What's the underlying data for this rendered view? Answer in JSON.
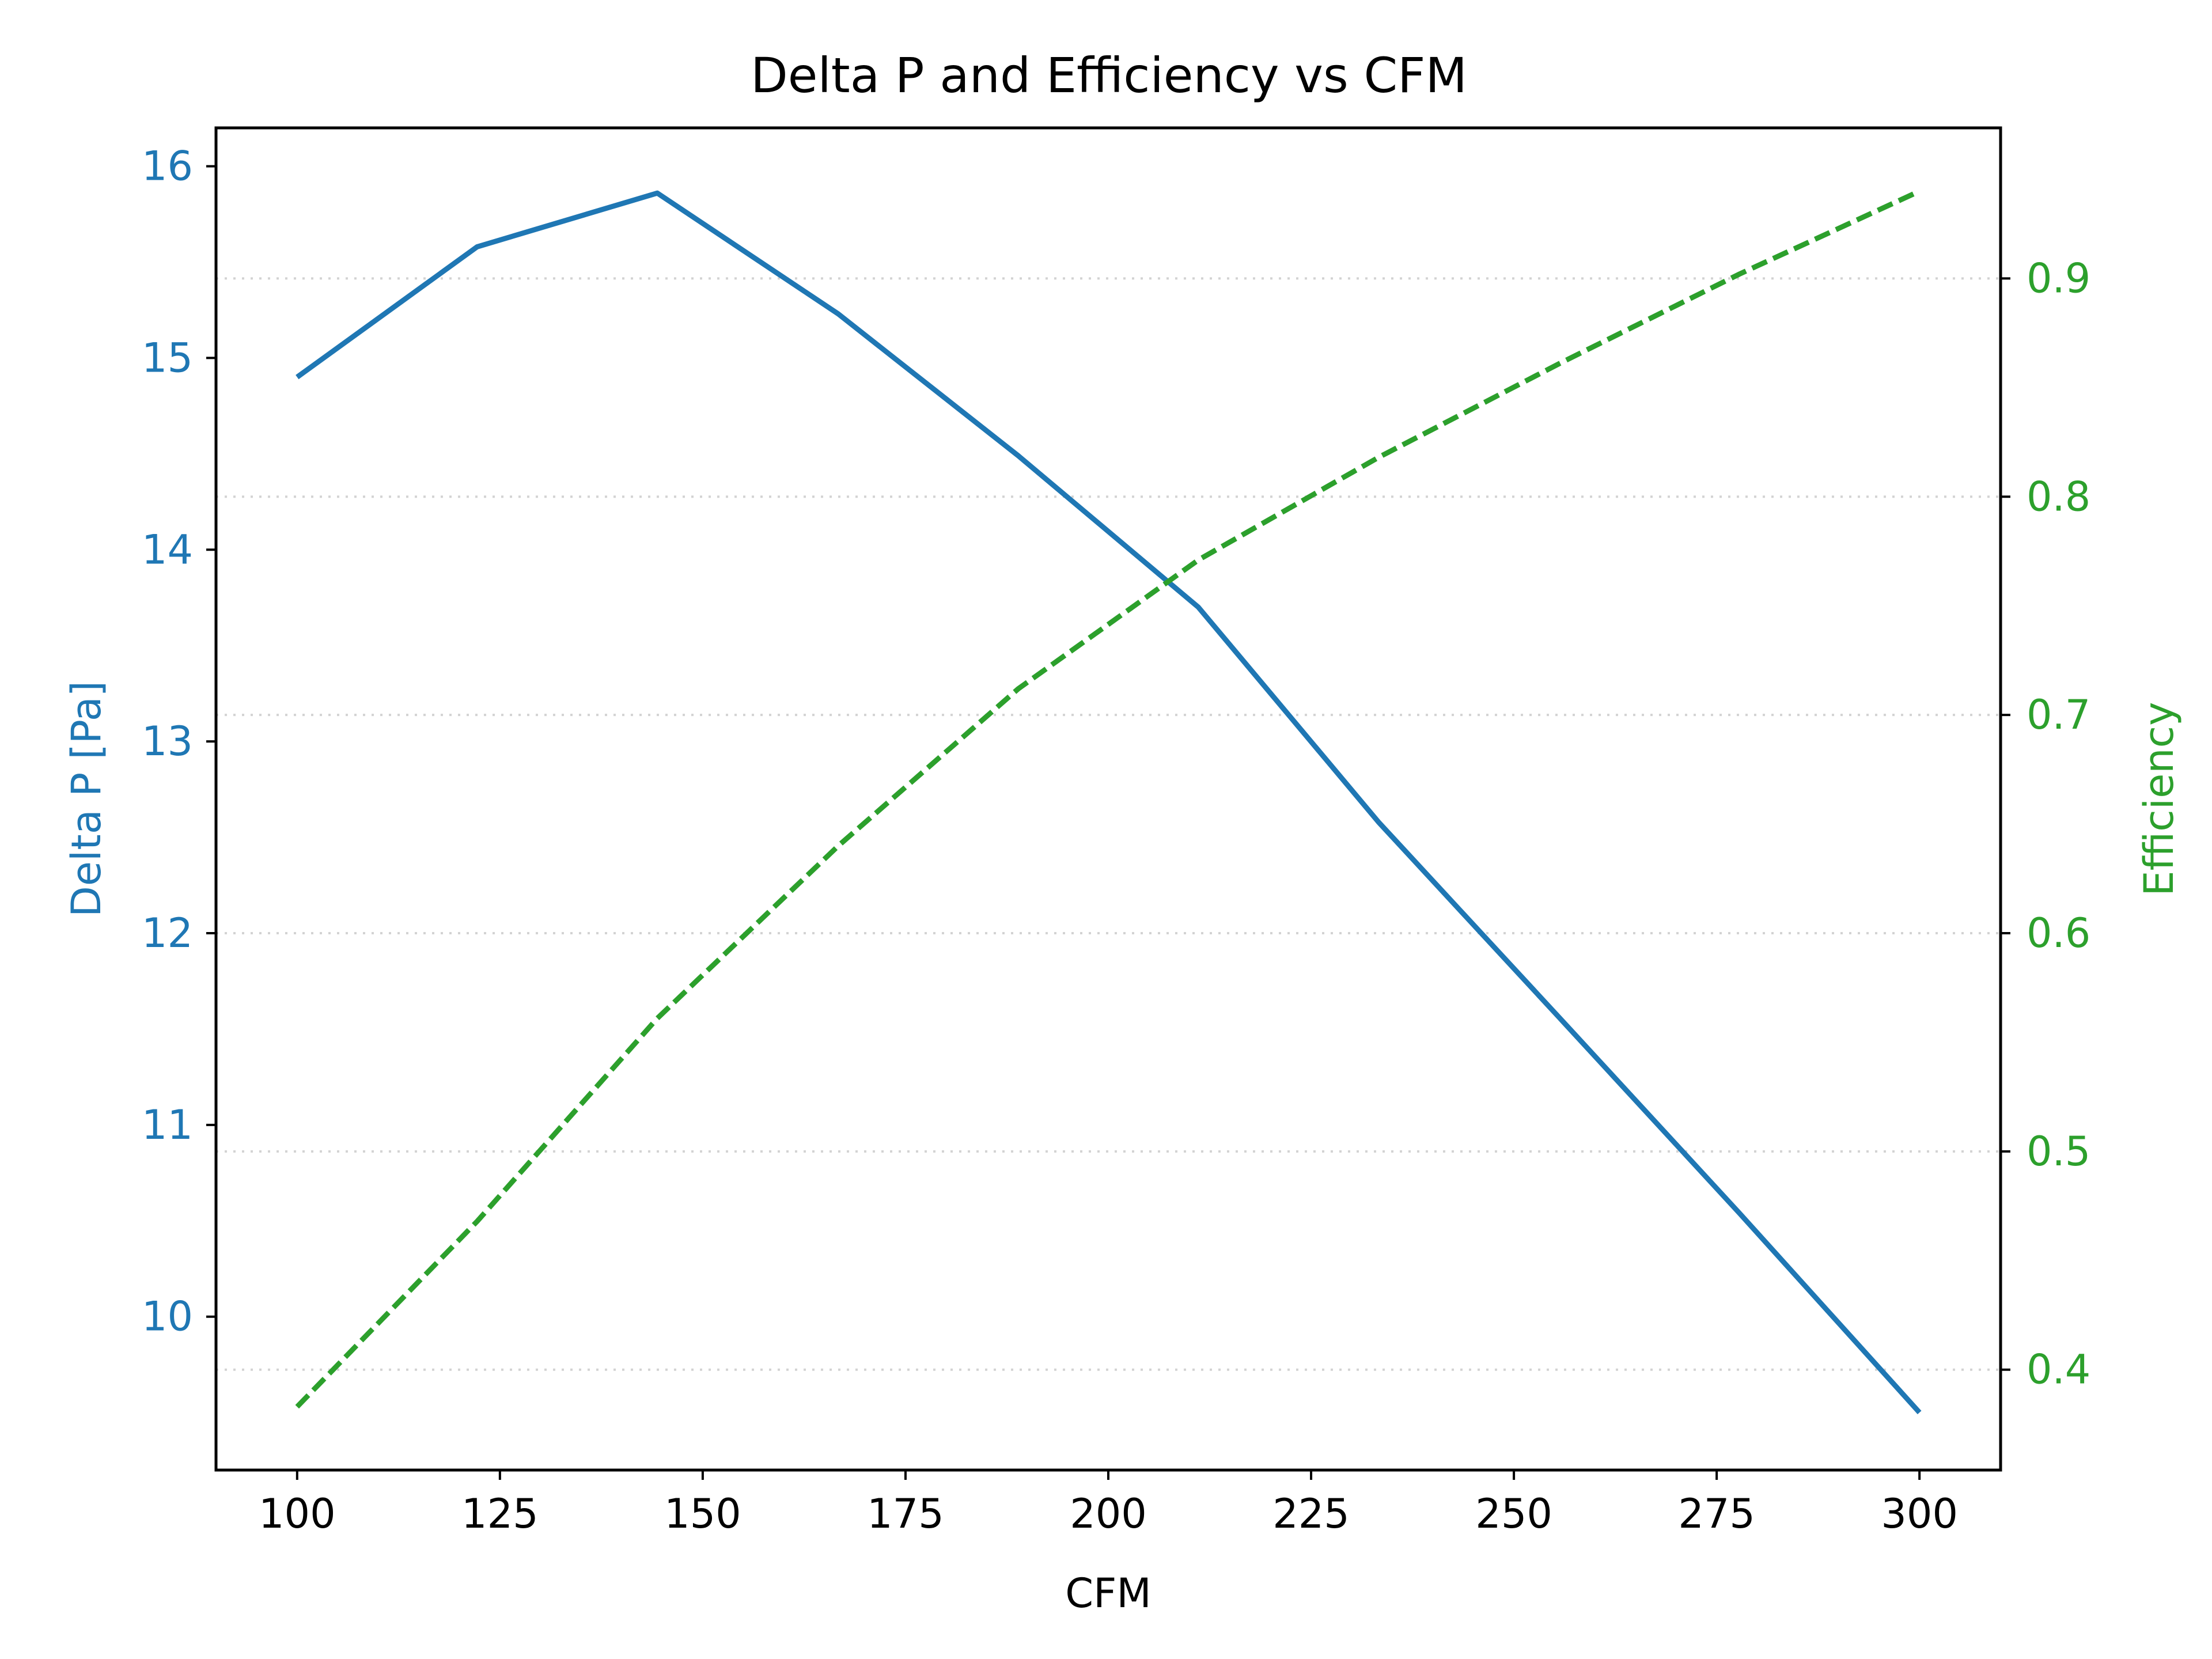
{
  "chart_data": {
    "type": "line",
    "title": "Delta P and Efficiency vs CFM",
    "xlabel": "CFM",
    "ylabel": "Delta P [Pa]",
    "y2label": "Efficiency",
    "xlim": [
      90,
      310
    ],
    "ylim": [
      9.2,
      16.2
    ],
    "y2lim": [
      0.354,
      0.969
    ],
    "x_ticks": [
      "100",
      "125",
      "150",
      "175",
      "200",
      "225",
      "250",
      "275",
      "300"
    ],
    "y_ticks": [
      "10",
      "11",
      "12",
      "13",
      "14",
      "15",
      "16"
    ],
    "y2_ticks": [
      "0.4",
      "0.5",
      "0.6",
      "0.7",
      "0.8",
      "0.9"
    ],
    "grid": "horizontal dotted, right axis",
    "series": [
      {
        "axis": "left",
        "color": "#1f77b4",
        "style": "solid",
        "x": [
          100,
          122.2,
          144.4,
          166.7,
          188.9,
          211.1,
          233.3,
          255.6,
          277.8,
          300
        ],
        "y": [
          14.9,
          15.58,
          15.86,
          15.23,
          14.49,
          13.7,
          12.58,
          11.56,
          10.54,
          9.5
        ]
      },
      {
        "axis": "right",
        "color": "#2ca02c",
        "style": "dashed",
        "x": [
          100,
          122.2,
          144.4,
          166.7,
          188.9,
          211.1,
          233.3,
          255.6,
          277.8,
          300
        ],
        "y": [
          0.383,
          0.468,
          0.561,
          0.64,
          0.712,
          0.771,
          0.818,
          0.861,
          0.902,
          0.94
        ]
      }
    ],
    "colors": {
      "left_axis": "#1f77b4",
      "right_axis": "#2ca02c",
      "grid": "#d3d3d3",
      "frame": "#000000"
    }
  }
}
